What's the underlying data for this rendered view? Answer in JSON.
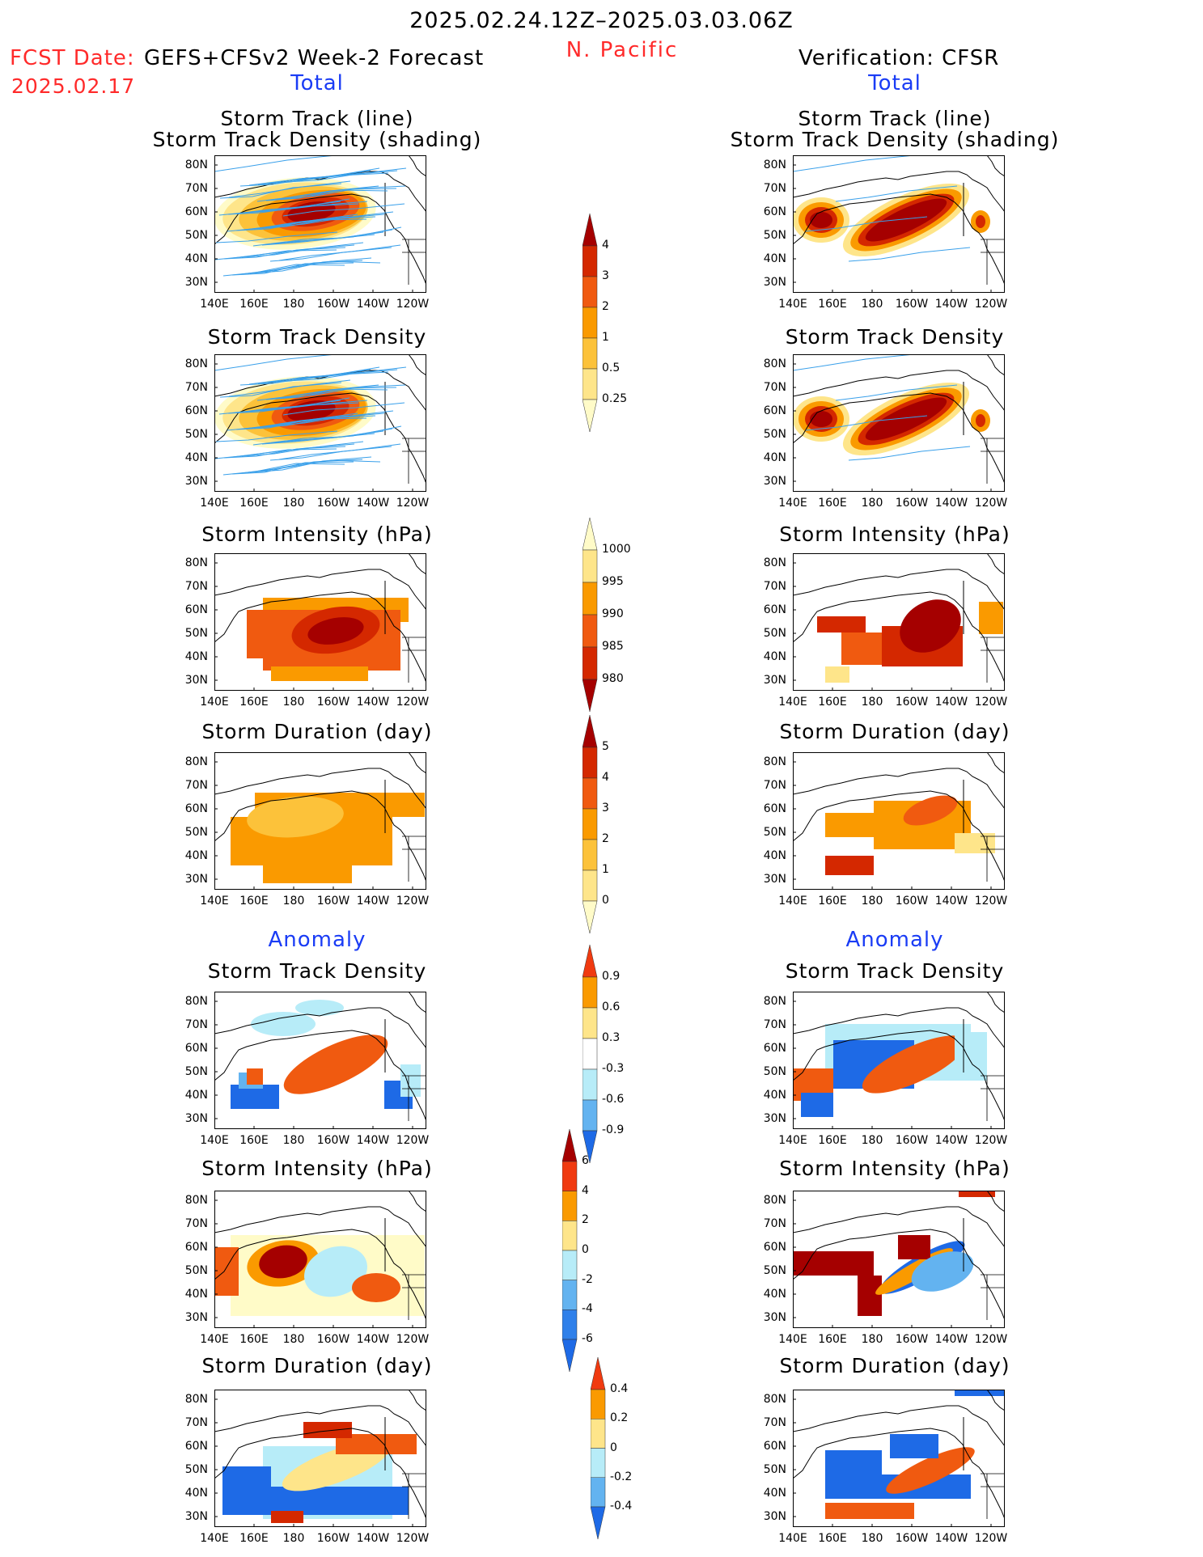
{
  "header": {
    "title": "2025.02.24.12Z–2025.03.03.06Z",
    "region": "N. Pacific",
    "fcst_label": "FCST Date:",
    "fcst_value": "GEFS+CFSv2 Week-2 Forecast",
    "fcst_date": "2025.02.17",
    "verification": "Verification: CFSR"
  },
  "sections": {
    "total": "Total",
    "anomaly": "Anomaly"
  },
  "rows": [
    {
      "title_line1": "Storm Track (line)",
      "title_line2": "Storm Track Density (shading)"
    },
    {
      "title_line1": "",
      "title_line2": "Storm Track Density"
    },
    {
      "title_line1": "",
      "title_line2": "Storm Intensity (hPa)"
    },
    {
      "title_line1": "",
      "title_line2": "Storm Duration (day)"
    },
    {
      "title_line1": "",
      "title_line2": "Storm Track Density"
    },
    {
      "title_line1": "",
      "title_line2": "Storm Intensity (hPa)"
    },
    {
      "title_line1": "",
      "title_line2": "Storm Duration (day)"
    }
  ],
  "axes": {
    "lat_ticks": [
      "80N",
      "70N",
      "60N",
      "50N",
      "40N",
      "30N"
    ],
    "lon_ticks": [
      "140E",
      "160E",
      "180",
      "160W",
      "140W",
      "120W"
    ]
  },
  "colorbars": [
    {
      "name": "density",
      "labels": [
        "4",
        "3",
        "2",
        "1",
        "0.5",
        "0.25"
      ],
      "colors": [
        "#a50000",
        "#d42800",
        "#f05a10",
        "#fa9a00",
        "#fcc23a",
        "#fee58a",
        "#fffbc8"
      ]
    },
    {
      "name": "intensity",
      "labels": [
        "1000",
        "995",
        "990",
        "985",
        "980"
      ],
      "colors": [
        "#fffbc8",
        "#fee58a",
        "#fa9a00",
        "#f05a10",
        "#d42800",
        "#a50000"
      ]
    },
    {
      "name": "duration",
      "labels": [
        "5",
        "4",
        "3",
        "2",
        "1",
        "0"
      ],
      "colors": [
        "#a50000",
        "#d42800",
        "#f05a10",
        "#fa9a00",
        "#fcc23a",
        "#fee58a",
        "#fffbc8"
      ]
    },
    {
      "name": "density-anom",
      "labels": [
        "0.9",
        "0.6",
        "0.3",
        "-0.3",
        "-0.6",
        "-0.9"
      ],
      "colors": [
        "#f03a10",
        "#fa9a00",
        "#fee58a",
        "#ffffff",
        "#b7ecf8",
        "#63b3f0",
        "#1e6ae6"
      ]
    },
    {
      "name": "intensity-anom",
      "labels": [
        "6",
        "4",
        "2",
        "0",
        "-2",
        "-4",
        "-6"
      ],
      "colors": [
        "#a50000",
        "#f03a10",
        "#fa9a00",
        "#fee58a",
        "#b7ecf8",
        "#63b3f0",
        "#2f80ea",
        "#1e6ae6"
      ]
    },
    {
      "name": "duration-anom",
      "labels": [
        "0.4",
        "0.2",
        "0",
        "-0.2",
        "-0.4"
      ],
      "colors": [
        "#f03a10",
        "#fa9a00",
        "#fee58a",
        "#b7ecf8",
        "#63b3f0",
        "#1e6ae6"
      ]
    }
  ]
}
